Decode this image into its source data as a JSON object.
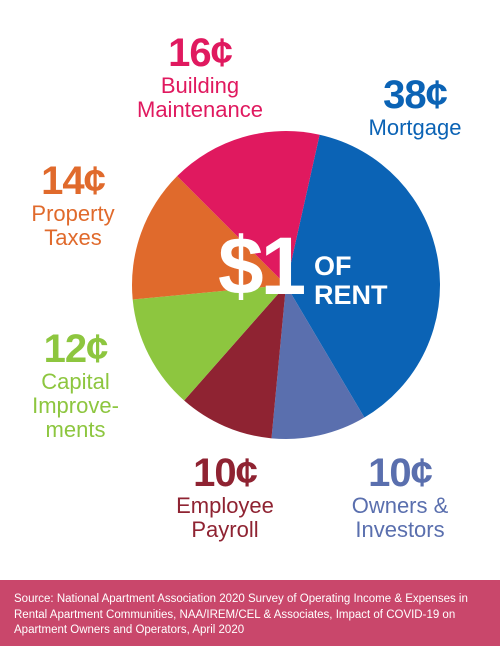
{
  "chart_data": {
    "type": "pie",
    "center_text": {
      "main": "$1",
      "sub_line1": "OF",
      "sub_line2": "RENT"
    },
    "slices": [
      {
        "value_label": "38¢",
        "value": 38,
        "label_lines": [
          "Mortgage"
        ],
        "color": "#0b63b5"
      },
      {
        "value_label": "10¢",
        "value": 10,
        "label_lines": [
          "Owners &",
          "Investors"
        ],
        "color": "#5a6fae"
      },
      {
        "value_label": "10¢",
        "value": 10,
        "label_lines": [
          "Employee",
          "Payroll"
        ],
        "color": "#8f2332"
      },
      {
        "value_label": "12¢",
        "value": 12,
        "label_lines": [
          "Capital",
          "Improve-",
          "ments"
        ],
        "color": "#8dc63f"
      },
      {
        "value_label": "14¢",
        "value": 14,
        "label_lines": [
          "Property",
          "Taxes"
        ],
        "color": "#e06a2c"
      },
      {
        "value_label": "16¢",
        "value": 16,
        "label_lines": [
          "Building",
          "Maintenance"
        ],
        "color": "#e0195f"
      }
    ]
  },
  "footer": {
    "source_text": "Source: National Apartment Association 2020 Survey of Operating Income & Expenses in Rental Apartment Communities, NAA/IREM/CEL & Associates, Impact of COVID-19 on Apartment Owners and Operators, April 2020"
  }
}
